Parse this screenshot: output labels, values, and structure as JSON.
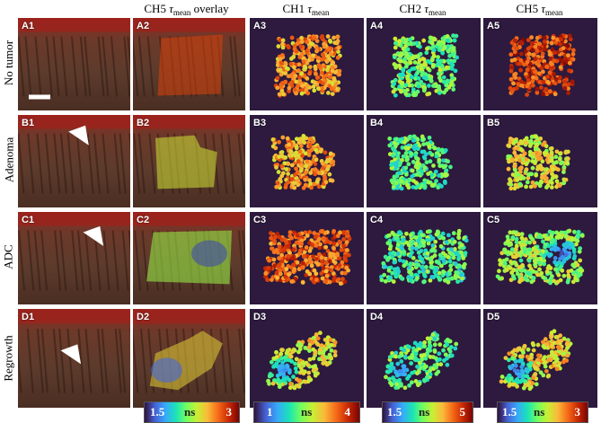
{
  "columns": {
    "col2": {
      "prefix": "CH5 ",
      "tau": "τ",
      "sub": "mean",
      "suffix": " overlay"
    },
    "col3": {
      "prefix": "CH1 ",
      "tau": "τ",
      "sub": "mean"
    },
    "col4": {
      "prefix": "CH2 ",
      "tau": "τ",
      "sub": "mean"
    },
    "col5": {
      "prefix": "CH5 ",
      "tau": "τ",
      "sub": "mean"
    }
  },
  "rows": [
    {
      "label": "No tumor",
      "panels": [
        "A1",
        "A2",
        "A3",
        "A4",
        "A5"
      ]
    },
    {
      "label": "Adenoma",
      "panels": [
        "B1",
        "B2",
        "B3",
        "B4",
        "B5"
      ]
    },
    {
      "label": "ADC",
      "panels": [
        "C1",
        "C2",
        "C3",
        "C4",
        "C5"
      ]
    },
    {
      "label": "Regrowth",
      "panels": [
        "D1",
        "D2",
        "D3",
        "D4",
        "D5"
      ]
    }
  ],
  "colorbars": [
    {
      "min": "1.5",
      "unit": "ns",
      "max": "3"
    },
    {
      "min": "1",
      "unit": "ns",
      "max": "4"
    },
    {
      "min": "1.5",
      "unit": "ns",
      "max": "5"
    },
    {
      "min": "1.5",
      "unit": "ns",
      "max": "3"
    }
  ],
  "colors": {
    "map_background": "#2d1a3e",
    "tissue": "#6b3a2a",
    "colormap": "turbo"
  }
}
